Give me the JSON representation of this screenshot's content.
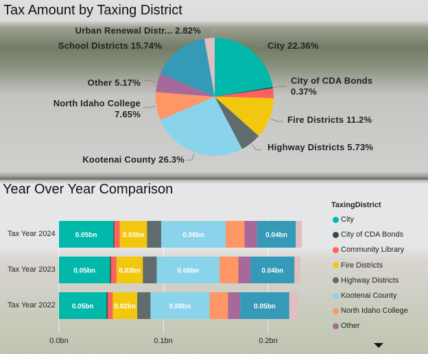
{
  "chart_data": [
    {
      "type": "pie",
      "title": "Tax Amount by Taxing District",
      "slices": [
        {
          "name": "City",
          "label": "City 22.36%",
          "value": 22.36,
          "color": "#01B8AA"
        },
        {
          "name": "City of CDA Bonds",
          "label": "City of CDA Bonds",
          "label2": "0.37%",
          "value": 0.37,
          "color": "#374649"
        },
        {
          "name": "Community Library",
          "label": "",
          "value": 2.66,
          "color": "#FD625E"
        },
        {
          "name": "Fire Districts",
          "label": "Fire Districts 11.2%",
          "value": 11.2,
          "color": "#F2C80F"
        },
        {
          "name": "Highway Districts",
          "label": "Highway Districts 5.73%",
          "value": 5.73,
          "color": "#5F6B6D"
        },
        {
          "name": "Kootenai County",
          "label": "Kootenai County 26.3%",
          "value": 26.3,
          "color": "#8AD4EB"
        },
        {
          "name": "North Idaho College",
          "label": "North Idaho College",
          "label2": "7.65%",
          "value": 7.65,
          "color": "#FE9666"
        },
        {
          "name": "Other",
          "label": "Other 5.17%",
          "value": 5.17,
          "color": "#A66999"
        },
        {
          "name": "School Districts",
          "label": "School Districts 15.74%",
          "value": 15.74,
          "color": "#3599B8"
        },
        {
          "name": "Urban Renewal Districts",
          "label": "Urban Renewal Distr... 2.82%",
          "value": 2.82,
          "color": "#DFBFBF"
        }
      ]
    },
    {
      "type": "bar",
      "orientation": "horizontal-stacked",
      "title": "Year Over Year Comparison",
      "categories": [
        "Tax Year 2024",
        "Tax Year 2023",
        "Tax Year 2022"
      ],
      "xlim": [
        0,
        0.23
      ],
      "x_ticks": [
        "0.0bn",
        "0.1bn",
        "0.2bn"
      ],
      "x_tick_values": [
        0,
        0.1,
        0.2
      ],
      "unit": "bn",
      "grid": true,
      "legend_title": "TaxingDistrict",
      "legend_position": "right",
      "series": [
        {
          "name": "City",
          "color": "#01B8AA",
          "values": [
            0.052,
            0.0487,
            0.0455
          ]
        },
        {
          "name": "City of CDA Bonds",
          "color": "#374649",
          "values": [
            0.001,
            0.0011,
            0.0011
          ]
        },
        {
          "name": "Community Library",
          "color": "#FD625E",
          "values": [
            0.0052,
            0.0052,
            0.0048
          ]
        },
        {
          "name": "Fire Districts",
          "color": "#F2C80F",
          "values": [
            0.026,
            0.0252,
            0.0234
          ]
        },
        {
          "name": "Highway Districts",
          "color": "#5F6B6D",
          "values": [
            0.0135,
            0.0133,
            0.0127
          ]
        },
        {
          "name": "Kootenai County",
          "color": "#8AD4EB",
          "values": [
            0.0617,
            0.06,
            0.0564
          ]
        },
        {
          "name": "North Idaho College",
          "color": "#FE9666",
          "values": [
            0.018,
            0.018,
            0.0177
          ]
        },
        {
          "name": "Other",
          "color": "#A66999",
          "values": [
            0.012,
            0.0116,
            0.0116
          ]
        },
        {
          "name": "School Districts",
          "color": "#3599B8",
          "values": [
            0.037,
            0.042,
            0.047
          ]
        },
        {
          "name": "Urban Renewal Districts",
          "color": "#DFBFBF",
          "values": [
            0.0059,
            0.0057,
            0.0083
          ]
        }
      ],
      "data_labels": [
        [
          "0.05bn",
          "",
          "",
          "0.03bn",
          "",
          "0.06bn",
          "",
          "",
          "0.04bn",
          ""
        ],
        [
          "0.05bn",
          "",
          "",
          "0.03bn",
          "",
          "0.06bn",
          "",
          "",
          "0.04bn",
          ""
        ],
        [
          "0.05bn",
          "",
          "",
          "0.02bn",
          "",
          "0.06bn",
          "",
          "",
          "0.05bn",
          ""
        ]
      ]
    }
  ],
  "legend": {
    "title": "TaxingDistrict",
    "visible_items": [
      "City",
      "City of CDA Bonds",
      "Community Library",
      "Fire Districts",
      "Highway Districts",
      "Kootenai County",
      "North Idaho College",
      "Other"
    ],
    "scroll_icon": "triangle-down-icon"
  }
}
